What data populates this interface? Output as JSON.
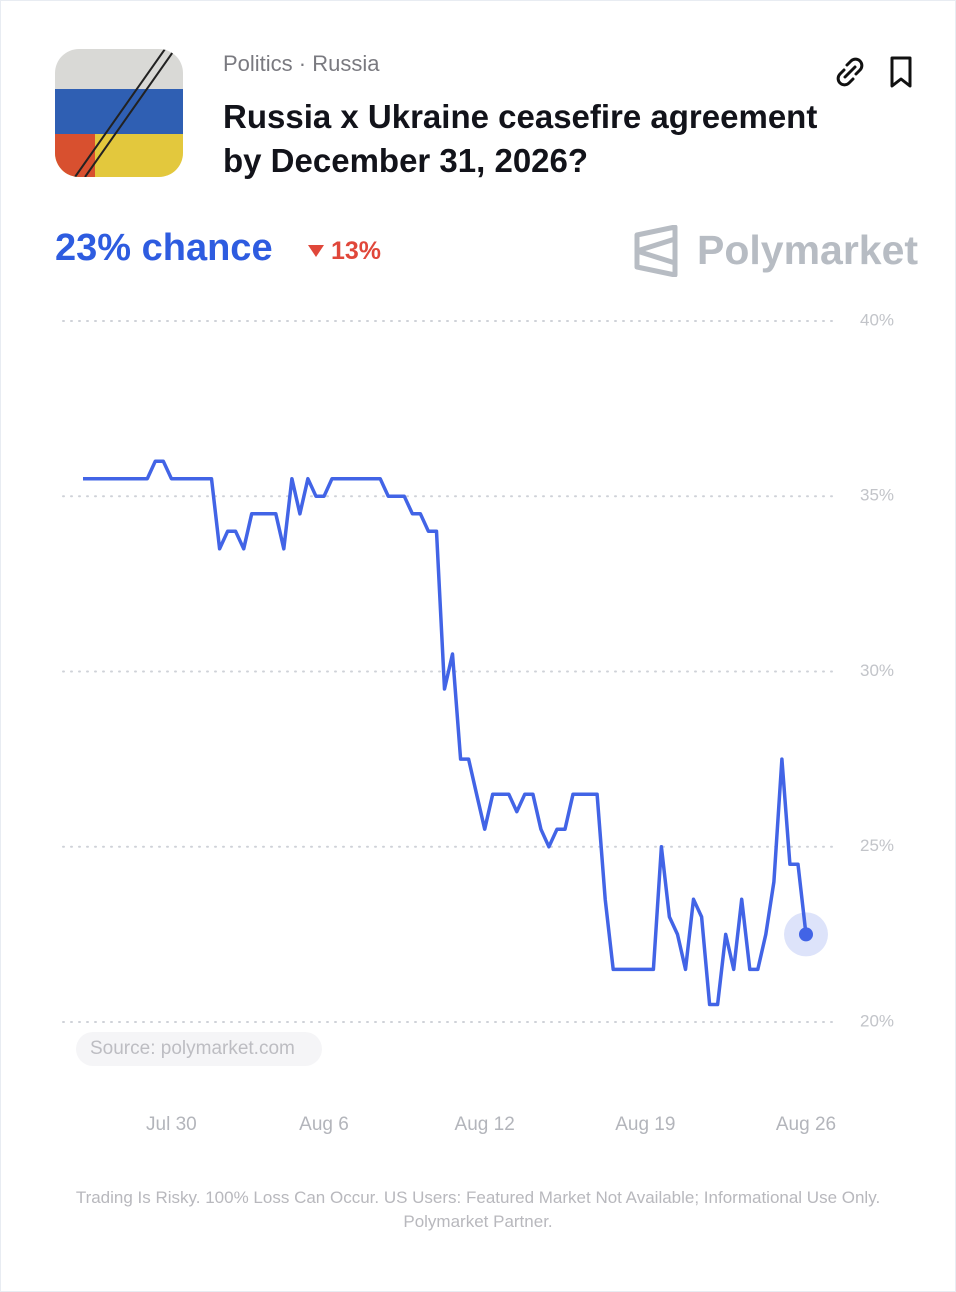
{
  "header": {
    "category": "Politics · Russia",
    "chance": "23% chance",
    "change": "13%",
    "brand": "Polymarket"
  },
  "chart_data": {
    "type": "line",
    "title": "Russia x Ukraine ceasefire agreement by December 31, 2026?",
    "categories": [
      null,
      null,
      null,
      null,
      null,
      null,
      null,
      null,
      null,
      null,
      null,
      "Jul 30",
      null,
      null,
      null,
      null,
      null,
      null,
      null,
      null,
      null,
      null,
      null,
      null,
      null,
      null,
      null,
      null,
      null,
      null,
      "Aug 6",
      null,
      null,
      null,
      null,
      null,
      null,
      null,
      null,
      null,
      null,
      null,
      null,
      null,
      null,
      null,
      null,
      null,
      null,
      null,
      "Aug 12",
      null,
      null,
      null,
      null,
      null,
      null,
      null,
      null,
      null,
      null,
      null,
      null,
      null,
      null,
      null,
      null,
      null,
      null,
      null,
      "Aug 19",
      null,
      null,
      null,
      null,
      null,
      null,
      null,
      null,
      null,
      null,
      null,
      null,
      null,
      null,
      null,
      null,
      null,
      null,
      null,
      "Aug 26"
    ],
    "values": [
      35.5,
      35.5,
      35.5,
      35.5,
      35.5,
      35.5,
      35.5,
      35.5,
      35.5,
      36,
      36,
      35.5,
      35.5,
      35.5,
      35.5,
      35.5,
      35.5,
      33.5,
      34,
      34,
      33.5,
      34.5,
      34.5,
      34.5,
      34.5,
      33.5,
      35.5,
      34.5,
      35.5,
      35,
      35,
      35.5,
      35.5,
      35.5,
      35.5,
      35.5,
      35.5,
      35.5,
      35,
      35,
      35,
      34.5,
      34.5,
      34,
      34,
      29.5,
      30.5,
      27.5,
      27.5,
      26.5,
      25.5,
      26.5,
      26.5,
      26.5,
      26,
      26.5,
      26.5,
      25.5,
      25,
      25.5,
      25.5,
      26.5,
      26.5,
      26.5,
      26.5,
      23.5,
      21.5,
      21.5,
      21.5,
      21.5,
      21.5,
      21.5,
      25,
      23,
      22.5,
      21.5,
      23.5,
      23,
      20.5,
      20.5,
      22.5,
      21.5,
      23.5,
      21.5,
      21.5,
      22.5,
      24,
      27.5,
      24.5,
      24.5,
      22.5
    ],
    "color": "#4264e6",
    "ylim": [
      20,
      40
    ],
    "yticks": [
      {
        "value": 20,
        "label": "20%"
      },
      {
        "value": 25,
        "label": "25%"
      },
      {
        "value": 30,
        "label": "30%"
      },
      {
        "value": 35,
        "label": "35%"
      },
      {
        "value": 40,
        "label": "40%"
      }
    ],
    "grid": true,
    "source": "Source: polymarket.com"
  },
  "footer": {
    "lines": [
      "Trading Is Risky. 100% Loss Can Occur. US Users: Featured Market Not Available; Informational Use Only.",
      "Polymarket Partner."
    ]
  }
}
